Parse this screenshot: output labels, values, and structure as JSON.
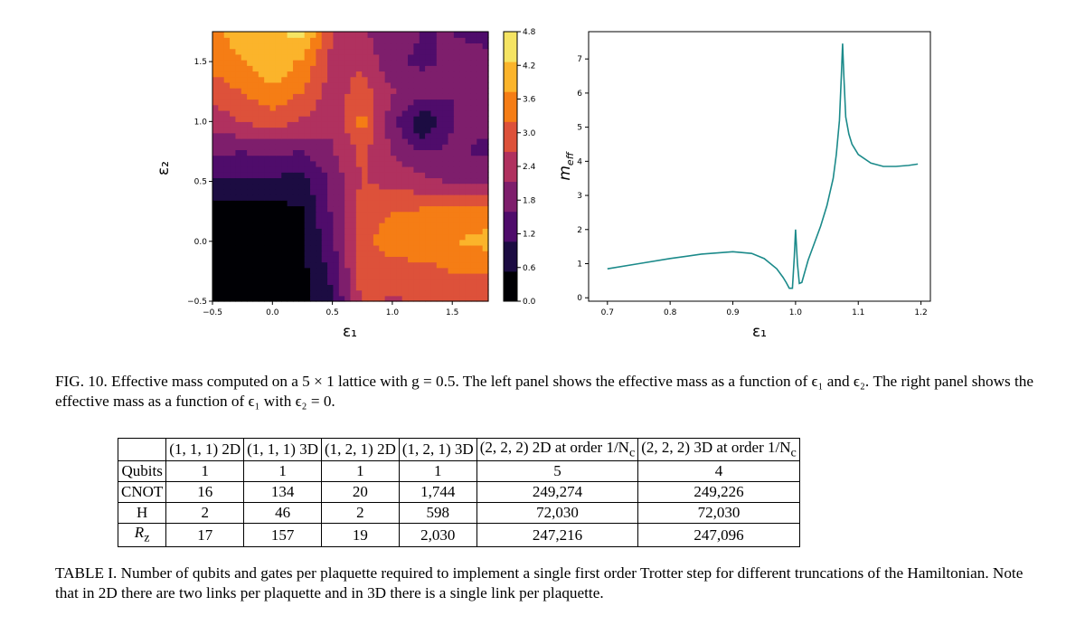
{
  "figure": {
    "caption": "FIG. 10. Effective mass computed on a 5 × 1 lattice with g = 0.5. The left panel shows the effective mass as a function of ϵ₁ and ϵ₂. The right panel shows the effective mass as a function of ϵ₁ with ϵ₂ = 0."
  },
  "chart_data": [
    {
      "type": "heatmap",
      "xlabel": "ε₁",
      "ylabel": "ε₂",
      "x_ticks": [
        "−0.5",
        "0.0",
        "0.5",
        "1.0",
        "1.5"
      ],
      "y_ticks": [
        "−0.5",
        "0.0",
        "0.5",
        "1.0",
        "1.5"
      ],
      "xlim": [
        -0.5,
        1.8
      ],
      "ylim": [
        -0.5,
        1.75
      ],
      "colorbar_ticks": [
        "0.0",
        "0.6",
        "1.2",
        "1.8",
        "2.4",
        "3.0",
        "3.6",
        "4.2",
        "4.8"
      ],
      "colorbar_range": [
        0.0,
        4.8
      ],
      "colormap": [
        "#000004",
        "#1c0c42",
        "#4f0c6b",
        "#7e1e6c",
        "#b0315f",
        "#dd513a",
        "#f57d15",
        "#fbb42b",
        "#f5e463"
      ],
      "x": [
        -0.5,
        -0.25,
        0.0,
        0.25,
        0.5,
        0.75,
        1.0,
        1.25,
        1.5,
        1.8
      ],
      "y": [
        -0.5,
        -0.25,
        0.0,
        0.25,
        0.5,
        0.75,
        1.0,
        1.25,
        1.5,
        1.75
      ],
      "z": [
        [
          0.3,
          0.3,
          0.3,
          0.3,
          1.0,
          2.8,
          2.6,
          2.7,
          2.8,
          2.8
        ],
        [
          0.3,
          0.3,
          0.3,
          0.4,
          1.2,
          3.0,
          3.0,
          3.0,
          3.2,
          3.2
        ],
        [
          0.3,
          0.3,
          0.3,
          0.4,
          1.5,
          3.1,
          3.4,
          3.6,
          3.7,
          3.9
        ],
        [
          0.3,
          0.3,
          0.3,
          0.5,
          1.7,
          3.0,
          3.2,
          3.3,
          3.4,
          3.5
        ],
        [
          1.0,
          1.0,
          0.9,
          0.9,
          1.7,
          2.7,
          2.5,
          2.3,
          2.1,
          1.9
        ],
        [
          1.7,
          1.6,
          1.7,
          1.6,
          2.1,
          2.8,
          2.1,
          1.6,
          1.7,
          1.5
        ],
        [
          2.3,
          2.7,
          2.9,
          2.6,
          2.2,
          3.4,
          1.8,
          0.5,
          1.6,
          1.7
        ],
        [
          2.9,
          3.2,
          3.6,
          3.2,
          2.4,
          2.9,
          2.2,
          1.9,
          1.6,
          1.9
        ],
        [
          3.4,
          3.7,
          4.2,
          3.6,
          2.5,
          2.6,
          1.7,
          1.5,
          1.7,
          1.7
        ],
        [
          3.6,
          4.0,
          4.2,
          4.4,
          2.7,
          2.2,
          1.8,
          1.6,
          1.6,
          1.5
        ]
      ]
    },
    {
      "type": "line",
      "xlabel": "ε₁",
      "ylabel": "m_eff",
      "x_ticks": [
        "0.7",
        "0.8",
        "0.9",
        "1.0",
        "1.1",
        "1.2"
      ],
      "y_ticks": [
        "0",
        "1",
        "2",
        "3",
        "4",
        "5",
        "6",
        "7"
      ],
      "xlim": [
        0.67,
        1.215
      ],
      "ylim": [
        -0.1,
        7.8
      ],
      "color": "#1b8a8a",
      "series": [
        {
          "x": [
            0.7,
            0.75,
            0.8,
            0.85,
            0.9,
            0.93,
            0.95,
            0.97,
            0.98,
            0.985,
            0.99,
            0.995,
            0.998,
            1.0,
            1.003,
            1.006,
            1.01,
            1.02,
            1.03,
            1.04,
            1.05,
            1.06,
            1.065,
            1.07,
            1.073,
            1.075,
            1.077,
            1.08,
            1.085,
            1.09,
            1.1,
            1.12,
            1.14,
            1.16,
            1.18,
            1.195
          ],
          "y": [
            0.85,
            1.0,
            1.15,
            1.28,
            1.35,
            1.3,
            1.15,
            0.85,
            0.6,
            0.45,
            0.28,
            0.28,
            1.2,
            2.0,
            1.0,
            0.42,
            0.45,
            1.1,
            1.6,
            2.1,
            2.7,
            3.5,
            4.2,
            5.2,
            6.5,
            7.45,
            6.5,
            5.3,
            4.8,
            4.5,
            4.2,
            3.95,
            3.85,
            3.85,
            3.88,
            3.92
          ]
        }
      ]
    }
  ],
  "table": {
    "headers": [
      "",
      "(1, 1, 1) 2D",
      "(1, 1, 1) 3D",
      "(1, 2, 1) 2D",
      "(1, 2, 1) 3D",
      "(2, 2, 2) 2D at order 1/N",
      "(2, 2, 2) 3D at order 1/N"
    ],
    "header_subscript": "c",
    "rows": [
      {
        "label": "Qubits",
        "values": [
          "1",
          "1",
          "1",
          "1",
          "5",
          "4"
        ]
      },
      {
        "label": "CNOT",
        "values": [
          "16",
          "134",
          "20",
          "1,744",
          "249,274",
          "249,226"
        ]
      },
      {
        "label": "H",
        "values": [
          "2",
          "46",
          "2",
          "598",
          "72,030",
          "72,030"
        ]
      },
      {
        "label": "R",
        "label_subscript": "z",
        "values": [
          "17",
          "157",
          "19",
          "2,030",
          "247,216",
          "247,096"
        ]
      }
    ],
    "caption": "TABLE I. Number of qubits and gates per plaquette required to implement a single first order Trotter step for different truncations of the Hamiltonian.  Note that in 2D there are two links per plaquette and in 3D there is a single link per plaquette."
  }
}
